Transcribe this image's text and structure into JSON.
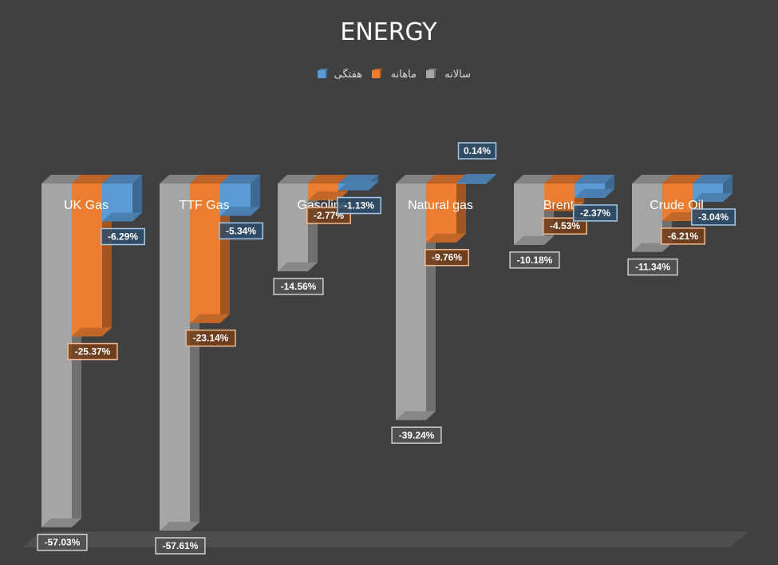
{
  "chart_data": {
    "type": "bar",
    "title": "ENERGY",
    "xlabel": "",
    "ylabel": "",
    "ylim": [
      -60,
      0
    ],
    "grid": false,
    "legend_position": "top",
    "categories": [
      "UK Gas",
      "TTF Gas",
      "Gasoline",
      "Natural gas",
      "Brent",
      "Crude Oil"
    ],
    "series": [
      {
        "name": "سالانه",
        "color": "#a5a5a5",
        "values": [
          -57.03,
          -57.61,
          -14.56,
          -39.24,
          -10.18,
          -11.34
        ],
        "labels": [
          "-57.03%",
          "-57.61%",
          "-14.56%",
          "-39.24%",
          "-10.18%",
          "-11.34%"
        ]
      },
      {
        "name": "ماهانه",
        "color": "#ed7d31",
        "values": [
          -25.37,
          -23.14,
          -2.77,
          -9.76,
          -4.53,
          -6.21
        ],
        "labels": [
          "-25.37%",
          "-23.14%",
          "-2.77%",
          "-9.76%",
          "-4.53%",
          "-6.21%"
        ]
      },
      {
        "name": "هفتگی",
        "color": "#5b9bd5",
        "values": [
          -6.29,
          -5.34,
          -1.13,
          0.14,
          -2.37,
          -3.04
        ],
        "labels": [
          "-6.29%",
          "-5.34%",
          "-1.13%",
          "0.14%",
          "-2.37%",
          "-3.04%"
        ]
      }
    ],
    "legend_order": [
      "هفتگی",
      "ماهانه",
      "سالانه"
    ]
  }
}
